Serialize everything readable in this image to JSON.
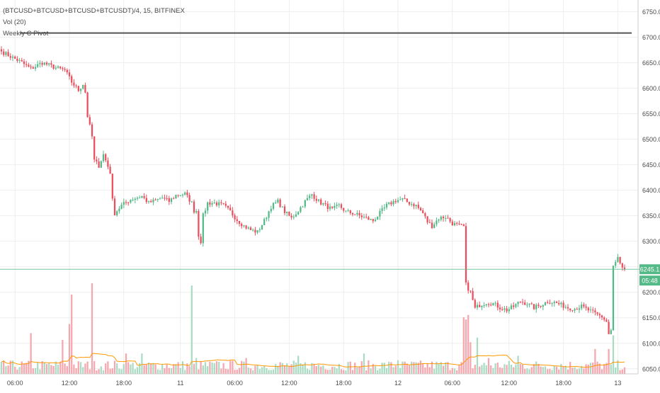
{
  "legend": {
    "symbol": "(BTCUSD+BTCUSD+BTCUSD+BTCUSDT)/4, 15, BITFINEX",
    "volume": "Vol (20)",
    "pivot": "Weekly C Pivot"
  },
  "colors": {
    "up": "#53b987",
    "down": "#eb4d5c",
    "up_volume": "#a9dcc3",
    "down_volume": "#f5a6ae",
    "volume_ma": "#ff9800",
    "pivot": "#555555",
    "last_price_line": "#53b987",
    "grid": "#eeeeee",
    "axis_text": "#4a4a4a"
  },
  "price_axis": {
    "ticks": [
      "6750.0",
      "6700.0",
      "6650.0",
      "6600.0",
      "6550.0",
      "6500.0",
      "6450.0",
      "6400.0",
      "6350.0",
      "6300.0",
      "6250.0",
      "6200.0",
      "6150.0",
      "6100.0",
      "6050.0"
    ],
    "last_price_label": "6245.1",
    "countdown_label": "05:48"
  },
  "time_axis": {
    "labels": [
      "06:00",
      "12:00",
      "18:00",
      "11",
      "06:00",
      "12:00",
      "18:00",
      "12",
      "06:00",
      "12:00",
      "18:00",
      "13"
    ]
  },
  "chart_data": {
    "type": "candlestick",
    "symbol": "(BTCUSD+BTCUSD+BTCUSD+BTCUSDT)/4",
    "interval": "15",
    "exchange": "BITFINEX",
    "ylim": [
      6040,
      6770
    ],
    "grid": true,
    "weekly_c_pivot": 6708,
    "last_price": 6245.1,
    "close_path_anchors": [
      [
        0,
        6672
      ],
      [
        9,
        6650
      ],
      [
        13,
        6638
      ],
      [
        18,
        6650
      ],
      [
        24,
        6640
      ],
      [
        28,
        6635
      ],
      [
        31,
        6612
      ],
      [
        34,
        6596
      ],
      [
        36,
        6608
      ],
      [
        37,
        6592
      ],
      [
        38,
        6545
      ],
      [
        40,
        6505
      ],
      [
        41,
        6458
      ],
      [
        43,
        6448
      ],
      [
        45,
        6470
      ],
      [
        48,
        6435
      ],
      [
        49,
        6380
      ],
      [
        50,
        6355
      ],
      [
        53,
        6370
      ],
      [
        57,
        6382
      ],
      [
        62,
        6388
      ],
      [
        65,
        6375
      ],
      [
        71,
        6385
      ],
      [
        74,
        6378
      ],
      [
        77,
        6390
      ],
      [
        81,
        6393
      ],
      [
        84,
        6375
      ],
      [
        85,
        6360
      ],
      [
        86,
        6360
      ],
      [
        87,
        6312
      ],
      [
        88,
        6300
      ],
      [
        89,
        6350
      ],
      [
        91,
        6375
      ],
      [
        94,
        6375
      ],
      [
        98,
        6370
      ],
      [
        101,
        6358
      ],
      [
        104,
        6342
      ],
      [
        107,
        6330
      ],
      [
        110,
        6322
      ],
      [
        113,
        6318
      ],
      [
        116,
        6340
      ],
      [
        119,
        6368
      ],
      [
        122,
        6378
      ],
      [
        125,
        6358
      ],
      [
        128,
        6345
      ],
      [
        131,
        6360
      ],
      [
        134,
        6378
      ],
      [
        137,
        6392
      ],
      [
        140,
        6378
      ],
      [
        143,
        6370
      ],
      [
        146,
        6362
      ],
      [
        149,
        6370
      ],
      [
        152,
        6358
      ],
      [
        155,
        6355
      ],
      [
        158,
        6350
      ],
      [
        161,
        6345
      ],
      [
        164,
        6340
      ],
      [
        167,
        6355
      ],
      [
        170,
        6370
      ],
      [
        174,
        6380
      ],
      [
        177,
        6382
      ],
      [
        180,
        6375
      ],
      [
        183,
        6370
      ],
      [
        186,
        6355
      ],
      [
        188,
        6338
      ],
      [
        190,
        6330
      ],
      [
        193,
        6345
      ],
      [
        196,
        6348
      ],
      [
        199,
        6335
      ],
      [
        202,
        6330
      ],
      [
        204,
        6328
      ],
      [
        205,
        6215
      ],
      [
        207,
        6200
      ],
      [
        209,
        6168
      ],
      [
        211,
        6175
      ],
      [
        214,
        6180
      ],
      [
        217,
        6178
      ],
      [
        220,
        6170
      ],
      [
        223,
        6165
      ],
      [
        226,
        6172
      ],
      [
        229,
        6182
      ],
      [
        232,
        6178
      ],
      [
        235,
        6170
      ],
      [
        238,
        6175
      ],
      [
        241,
        6182
      ],
      [
        244,
        6180
      ],
      [
        247,
        6175
      ],
      [
        250,
        6170
      ],
      [
        253,
        6168
      ],
      [
        256,
        6172
      ],
      [
        259,
        6165
      ],
      [
        262,
        6158
      ],
      [
        265,
        6152
      ],
      [
        267,
        6142
      ],
      [
        268,
        6118
      ],
      [
        269,
        6125
      ],
      [
        270,
        6250
      ],
      [
        271,
        6258
      ],
      [
        272,
        6268
      ],
      [
        273,
        6255
      ],
      [
        274,
        6245
      ],
      [
        275,
        6245.1
      ]
    ],
    "volume": {
      "name": "Vol (20)",
      "spikes": [
        [
          13,
          0.36
        ],
        [
          27,
          0.3
        ],
        [
          30,
          0.44
        ],
        [
          31,
          0.7
        ],
        [
          40,
          0.8
        ],
        [
          55,
          0.18
        ],
        [
          62,
          0.18
        ],
        [
          84,
          0.78
        ],
        [
          86,
          0.14
        ],
        [
          108,
          0.14
        ],
        [
          131,
          0.16
        ],
        [
          160,
          0.18
        ],
        [
          175,
          0.12
        ],
        [
          204,
          0.5
        ],
        [
          205,
          0.48
        ],
        [
          206,
          0.52
        ],
        [
          207,
          0.28
        ],
        [
          210,
          0.32
        ],
        [
          215,
          0.14
        ],
        [
          228,
          0.16
        ],
        [
          262,
          0.22
        ],
        [
          268,
          0.22
        ],
        [
          270,
          0.34
        ]
      ]
    },
    "volume_ma": {
      "name": "Vol (20) MA"
    }
  }
}
